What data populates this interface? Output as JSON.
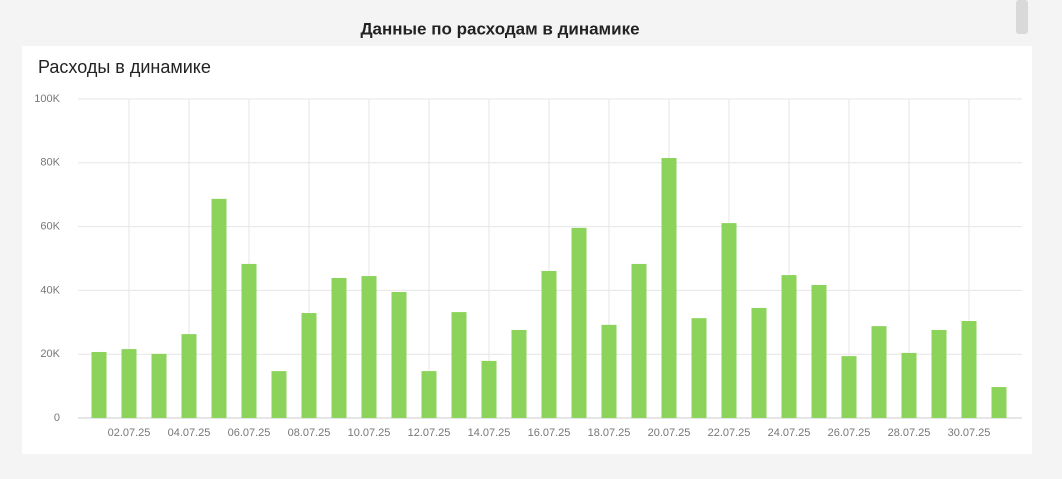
{
  "header": {
    "title": "Данные по расходам в динамике"
  },
  "chart_data": {
    "type": "bar",
    "title": "Расходы в динамике",
    "categories": [
      null,
      "02.07.25",
      null,
      "04.07.25",
      null,
      "06.07.25",
      null,
      "08.07.25",
      null,
      "10.07.25",
      null,
      "12.07.25",
      null,
      "14.07.25",
      null,
      "16.07.25",
      null,
      "18.07.25",
      null,
      "20.07.25",
      null,
      "22.07.25",
      null,
      "24.07.25",
      null,
      "26.07.25",
      null,
      "28.07.25",
      null,
      "30.07.25",
      null
    ],
    "values": [
      20700,
      21600,
      20100,
      26300,
      68700,
      48300,
      14700,
      32900,
      43900,
      44500,
      39500,
      14700,
      33200,
      17900,
      27600,
      46100,
      59600,
      29200,
      48300,
      81500,
      31300,
      61100,
      34500,
      44800,
      41700,
      19400,
      28800,
      20400,
      27600,
      30400,
      9700
    ],
    "color": "#8bd35a",
    "ylim": [
      0,
      100000
    ],
    "yticks": [
      0,
      {
        "value": 20000,
        "label": "20K"
      },
      {
        "value": 40000,
        "label": "40K"
      },
      {
        "value": 60000,
        "label": "60K"
      },
      {
        "value": 80000,
        "label": "80K"
      },
      {
        "value": 100000,
        "label": "100K"
      }
    ],
    "grid": true
  }
}
